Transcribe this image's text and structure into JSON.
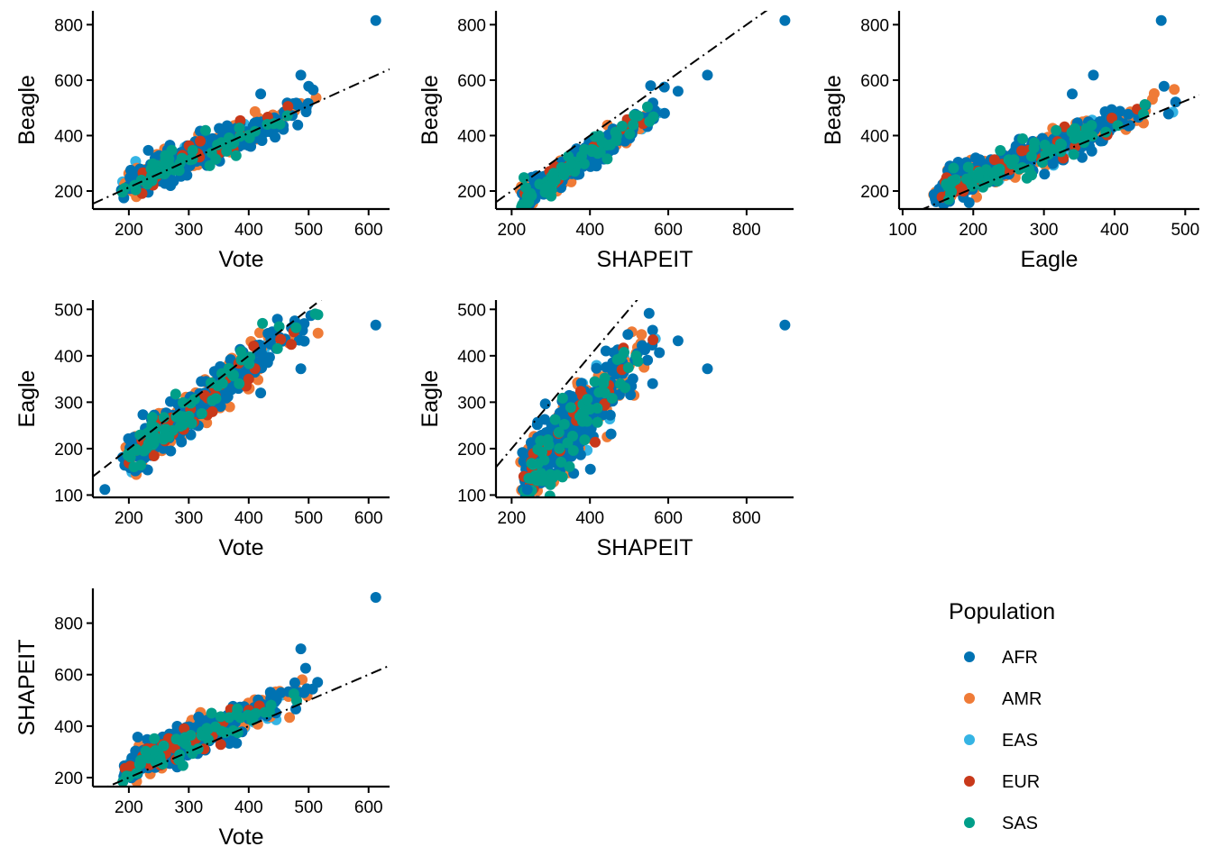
{
  "chart_data": [
    {
      "type": "scatter",
      "xlabel": "Vote",
      "ylabel": "Beagle",
      "xlim": [
        140,
        635
      ],
      "ylim": [
        135,
        850
      ],
      "xticks": [
        200,
        300,
        400,
        500,
        600
      ],
      "yticks": [
        200,
        400,
        600,
        800
      ],
      "reference_line": {
        "style": "dash-dot",
        "slope": 0.98,
        "intercept": 17
      },
      "trend": {
        "slope": 0.95,
        "intercept": 35,
        "spread": 26
      },
      "x_range": [
        160,
        520
      ],
      "n_points": 520,
      "outliers": [
        [
          612,
          815
        ],
        [
          487,
          618
        ],
        [
          420,
          550
        ],
        [
          500,
          578
        ]
      ],
      "series_weights": {
        "AFR": 0.5,
        "AMR": 0.28,
        "EAS": 0.05,
        "EUR": 0.05,
        "SAS": 0.12
      }
    },
    {
      "type": "scatter",
      "xlabel": "SHAPEIT",
      "ylabel": "Beagle",
      "xlim": [
        160,
        920
      ],
      "ylim": [
        135,
        850
      ],
      "xticks": [
        200,
        400,
        600,
        800
      ],
      "yticks": [
        200,
        400,
        600,
        800
      ],
      "reference_line": {
        "style": "dash-dot",
        "slope": 1.0,
        "intercept": 0
      },
      "trend": {
        "slope": 0.92,
        "intercept": -35,
        "spread": 22
      },
      "x_range": [
        190,
        600
      ],
      "n_points": 520,
      "outliers": [
        [
          898,
          815
        ],
        [
          700,
          618
        ],
        [
          625,
          560
        ],
        [
          590,
          575
        ],
        [
          555,
          580
        ]
      ],
      "series_weights": {
        "AFR": 0.5,
        "AMR": 0.28,
        "EAS": 0.05,
        "EUR": 0.05,
        "SAS": 0.12
      }
    },
    {
      "type": "scatter",
      "xlabel": "Eagle",
      "ylabel": "Beagle",
      "xlim": [
        95,
        520
      ],
      "ylim": [
        135,
        850
      ],
      "xticks": [
        100,
        200,
        300,
        400,
        500
      ],
      "yticks": [
        200,
        400,
        600,
        800
      ],
      "reference_line": {
        "style": "dash-dot",
        "slope": 1.05,
        "intercept": 0
      },
      "trend": {
        "slope": 1.0,
        "intercept": 45,
        "spread": 28
      },
      "x_range": [
        112,
        500
      ],
      "n_points": 520,
      "outliers": [
        [
          466,
          815
        ],
        [
          370,
          618
        ],
        [
          340,
          550
        ],
        [
          470,
          578
        ],
        [
          420,
          435
        ]
      ],
      "series_weights": {
        "AFR": 0.5,
        "AMR": 0.28,
        "EAS": 0.05,
        "EUR": 0.05,
        "SAS": 0.12
      }
    },
    {
      "type": "scatter",
      "xlabel": "Vote",
      "ylabel": "Eagle",
      "xlim": [
        140,
        635
      ],
      "ylim": [
        95,
        520
      ],
      "xticks": [
        200,
        300,
        400,
        500,
        600
      ],
      "yticks": [
        100,
        200,
        300,
        400,
        500
      ],
      "reference_line": {
        "style": "dashed",
        "slope": 1.0,
        "intercept": 0
      },
      "trend": {
        "slope": 1.0,
        "intercept": -20,
        "spread": 22
      },
      "x_range": [
        160,
        520
      ],
      "n_points": 520,
      "outliers": [
        [
          612,
          466
        ],
        [
          487,
          372
        ],
        [
          160,
          112
        ],
        [
          420,
          320
        ]
      ],
      "series_weights": {
        "AFR": 0.5,
        "AMR": 0.28,
        "EAS": 0.05,
        "EUR": 0.05,
        "SAS": 0.12
      }
    },
    {
      "type": "scatter",
      "xlabel": "SHAPEIT",
      "ylabel": "Eagle",
      "xlim": [
        160,
        920
      ],
      "ylim": [
        95,
        520
      ],
      "xticks": [
        200,
        400,
        600,
        800
      ],
      "yticks": [
        100,
        200,
        300,
        400,
        500
      ],
      "reference_line": {
        "style": "dash-dot",
        "slope": 1.0,
        "intercept": 0
      },
      "trend": {
        "slope": 0.9,
        "intercept": -75,
        "spread": 38
      },
      "x_range": [
        190,
        600
      ],
      "n_points": 520,
      "outliers": [
        [
          898,
          466
        ],
        [
          700,
          372
        ],
        [
          625,
          432
        ],
        [
          560,
          340
        ],
        [
          240,
          112
        ]
      ],
      "series_weights": {
        "AFR": 0.5,
        "AMR": 0.28,
        "EAS": 0.05,
        "EUR": 0.05,
        "SAS": 0.12
      }
    },
    {
      "type": "scatter",
      "xlabel": "Vote",
      "ylabel": "SHAPEIT",
      "xlim": [
        140,
        635
      ],
      "ylim": [
        165,
        935
      ],
      "xticks": [
        200,
        300,
        400,
        500,
        600
      ],
      "yticks": [
        200,
        400,
        600,
        800
      ],
      "reference_line": {
        "style": "dash-dot",
        "slope": 1.0,
        "intercept": 0
      },
      "trend": {
        "slope": 1.05,
        "intercept": 30,
        "spread": 30
      },
      "x_range": [
        160,
        520
      ],
      "n_points": 520,
      "outliers": [
        [
          612,
          900
        ],
        [
          487,
          700
        ],
        [
          495,
          625
        ],
        [
          515,
          570
        ]
      ],
      "series_weights": {
        "AFR": 0.5,
        "AMR": 0.28,
        "EAS": 0.05,
        "EUR": 0.05,
        "SAS": 0.12
      }
    }
  ],
  "legend": {
    "title": "Population",
    "items": [
      {
        "label": "AFR",
        "color": "#0072B2"
      },
      {
        "label": "AMR",
        "color": "#EF7B37"
      },
      {
        "label": "EAS",
        "color": "#35B4E4"
      },
      {
        "label": "EUR",
        "color": "#C8391A"
      },
      {
        "label": "SAS",
        "color": "#009E89"
      }
    ]
  }
}
